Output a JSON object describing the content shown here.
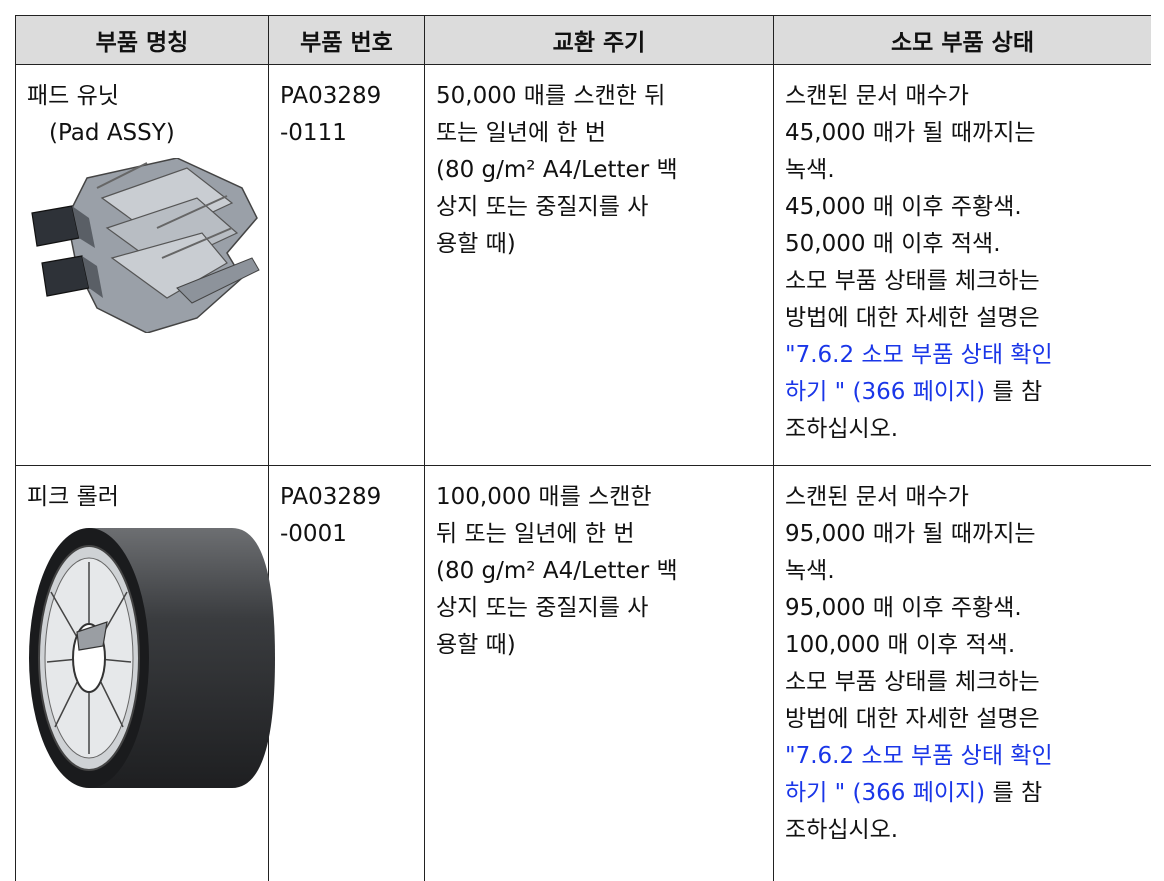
{
  "header": [
    "부품 명칭",
    "부품 번호",
    "교환 주기",
    "소모 부품 상태"
  ],
  "rows": [
    {
      "name": [
        "패드 유닛",
        "(Pad ASSY)"
      ],
      "part_no": [
        "PA03289",
        "-0111"
      ],
      "cycle": [
        "50,000 매를 스캔한 뒤",
        "또는 일년에 한 번",
        "(80 g/m² A4/Letter 백",
        "상지 또는 중질지를 사",
        "용할 때)"
      ],
      "status": [
        [
          {
            "text": "스캔된 문서 매수가"
          }
        ],
        [
          {
            "text": "45,000 매가 될 때까지는"
          }
        ],
        [
          {
            "text": "녹색."
          }
        ],
        [
          {
            "text": "45,000 매 이후 주황색."
          }
        ],
        [
          {
            "text": "50,000 매 이후 적색."
          }
        ],
        [
          {
            "text": "소모 부품 상태를 체크하는"
          }
        ],
        [
          {
            "text": "방법에 대한 자세한 설명은"
          }
        ],
        [
          {
            "text": "\"7.6.2 소모 부품 상태 확인",
            "link": true
          }
        ],
        [
          {
            "text": "하기 \"  (366 페이지)",
            "link": true
          },
          {
            "text": " 를 참"
          }
        ],
        [
          {
            "text": "조하십시오."
          }
        ]
      ]
    },
    {
      "name": [
        "피크 롤러"
      ],
      "part_no": [
        "PA03289",
        "-0001"
      ],
      "cycle": [
        "100,000 매를 스캔한",
        "뒤 또는 일년에 한 번",
        "(80 g/m² A4/Letter 백",
        "상지 또는 중질지를 사",
        "용할 때)"
      ],
      "status": [
        [
          {
            "text": "스캔된 문서 매수가"
          }
        ],
        [
          {
            "text": "95,000 매가 될 때까지는"
          }
        ],
        [
          {
            "text": "녹색."
          }
        ],
        [
          {
            "text": "95,000 매 이후 주황색."
          }
        ],
        [
          {
            "text": "100,000 매 이후 적색."
          }
        ],
        [
          {
            "text": "소모 부품 상태를 체크하는"
          }
        ],
        [
          {
            "text": "방법에 대한 자세한 설명은"
          }
        ],
        [
          {
            "text": "\"7.6.2 소모 부품 상태 확인",
            "link": true
          }
        ],
        [
          {
            "text": "하기 \"  (366 페이지)",
            "link": true
          },
          {
            "text": " 를 참"
          }
        ],
        [
          {
            "text": "조하십시오."
          }
        ]
      ]
    }
  ]
}
